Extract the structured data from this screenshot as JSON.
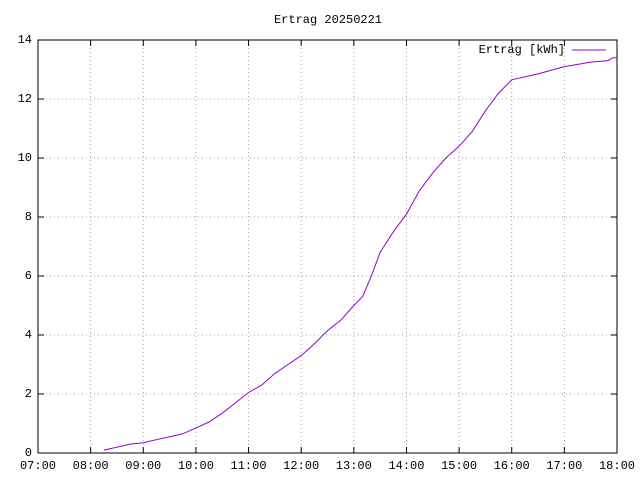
{
  "chart_data": {
    "type": "line",
    "title": "Ertrag 20250221",
    "x": [
      "08:15",
      "08:30",
      "08:45",
      "09:00",
      "09:15",
      "09:30",
      "09:45",
      "10:00",
      "10:15",
      "10:30",
      "10:45",
      "11:00",
      "11:15",
      "11:30",
      "11:45",
      "12:00",
      "12:15",
      "12:30",
      "12:45",
      "13:00",
      "13:10",
      "13:20",
      "13:30",
      "13:45",
      "14:00",
      "14:15",
      "14:30",
      "14:45",
      "15:00",
      "15:15",
      "15:30",
      "15:45",
      "16:00",
      "16:30",
      "17:00",
      "17:30",
      "17:50",
      "17:55",
      "18:00"
    ],
    "series": [
      {
        "name": "Ertrag [kWh]",
        "color": "#9400d3",
        "values": [
          0.1,
          0.2,
          0.3,
          0.35,
          0.45,
          0.55,
          0.65,
          0.85,
          1.05,
          1.35,
          1.7,
          2.05,
          2.3,
          2.7,
          3.0,
          3.3,
          3.7,
          4.15,
          4.5,
          5.0,
          5.3,
          6.0,
          6.8,
          7.5,
          8.1,
          8.9,
          9.5,
          10.0,
          10.4,
          10.9,
          11.6,
          12.2,
          12.65,
          12.85,
          13.1,
          13.25,
          13.3,
          13.4,
          13.4
        ]
      }
    ],
    "xlim": [
      "07:00",
      "18:00"
    ],
    "xticks": [
      "07:00",
      "08:00",
      "09:00",
      "10:00",
      "11:00",
      "12:00",
      "13:00",
      "14:00",
      "15:00",
      "16:00",
      "17:00",
      "18:00"
    ],
    "ylim": [
      0,
      14
    ],
    "yticks": [
      0,
      2,
      4,
      6,
      8,
      10,
      12,
      14
    ],
    "grid": true,
    "legend": "top-right"
  }
}
